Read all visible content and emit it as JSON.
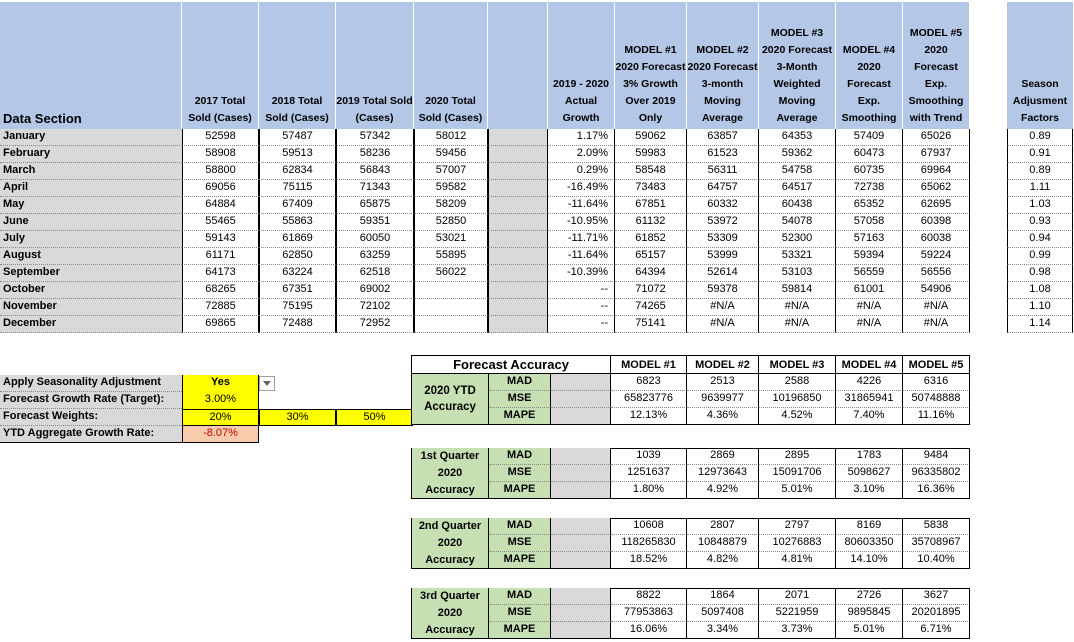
{
  "header": {
    "data_section": "Data Section",
    "cols": [
      "2017 Total Sold (Cases)",
      "2018 Total Sold (Cases)",
      "2019 Total Sold (Cases)",
      "2020 Total Sold (Cases)",
      "",
      "2019 - 2020 Actual Growth",
      "MODEL #1 2020 Forecast 3% Growth Over 2019 Only",
      "MODEL #2 2020 Forecast 3-month Moving Average",
      "MODEL #3 2020 Forecast 3-Month Weighted Moving Average",
      "MODEL #4 2020 Forecast Exp. Smoothing",
      "MODEL #5 2020 Forecast Exp. Smoothing with Trend",
      "Season Adjusment Factors"
    ]
  },
  "months": [
    {
      "name": "January",
      "y2017": "52598",
      "y2018": "57487",
      "y2019": "57342",
      "y2020": "58012",
      "growth": "1.17%",
      "m1": "59062",
      "m2": "63857",
      "m3": "64353",
      "m4": "57409",
      "m5": "65026",
      "season": "0.89"
    },
    {
      "name": "February",
      "y2017": "58908",
      "y2018": "59513",
      "y2019": "58236",
      "y2020": "59456",
      "growth": "2.09%",
      "m1": "59983",
      "m2": "61523",
      "m3": "59362",
      "m4": "60473",
      "m5": "67937",
      "season": "0.91"
    },
    {
      "name": "March",
      "y2017": "58800",
      "y2018": "62834",
      "y2019": "56843",
      "y2020": "57007",
      "growth": "0.29%",
      "m1": "58548",
      "m2": "56311",
      "m3": "54758",
      "m4": "60735",
      "m5": "69964",
      "season": "0.89"
    },
    {
      "name": "April",
      "y2017": "69056",
      "y2018": "75115",
      "y2019": "71343",
      "y2020": "59582",
      "growth": "-16.49%",
      "m1": "73483",
      "m2": "64757",
      "m3": "64517",
      "m4": "72738",
      "m5": "65062",
      "season": "1.11"
    },
    {
      "name": "May",
      "y2017": "64884",
      "y2018": "67409",
      "y2019": "65875",
      "y2020": "58209",
      "growth": "-11.64%",
      "m1": "67851",
      "m2": "60332",
      "m3": "60438",
      "m4": "65352",
      "m5": "62695",
      "season": "1.03"
    },
    {
      "name": "June",
      "y2017": "55465",
      "y2018": "55863",
      "y2019": "59351",
      "y2020": "52850",
      "growth": "-10.95%",
      "m1": "61132",
      "m2": "53972",
      "m3": "54078",
      "m4": "57058",
      "m5": "60398",
      "season": "0.93"
    },
    {
      "name": "July",
      "y2017": "59143",
      "y2018": "61869",
      "y2019": "60050",
      "y2020": "53021",
      "growth": "-11.71%",
      "m1": "61852",
      "m2": "53309",
      "m3": "52300",
      "m4": "57163",
      "m5": "60038",
      "season": "0.94"
    },
    {
      "name": "August",
      "y2017": "61171",
      "y2018": "62850",
      "y2019": "63259",
      "y2020": "55895",
      "growth": "-11.64%",
      "m1": "65157",
      "m2": "53999",
      "m3": "53321",
      "m4": "59394",
      "m5": "59224",
      "season": "0.99"
    },
    {
      "name": "September",
      "y2017": "64173",
      "y2018": "63224",
      "y2019": "62518",
      "y2020": "56022",
      "growth": "-10.39%",
      "m1": "64394",
      "m2": "52614",
      "m3": "53103",
      "m4": "56559",
      "m5": "56556",
      "season": "0.98"
    },
    {
      "name": "October",
      "y2017": "68265",
      "y2018": "67351",
      "y2019": "69002",
      "y2020": "",
      "growth": "--",
      "m1": "71072",
      "m2": "59378",
      "m3": "59814",
      "m4": "61001",
      "m5": "54906",
      "season": "1.08"
    },
    {
      "name": "November",
      "y2017": "72885",
      "y2018": "75195",
      "y2019": "72102",
      "y2020": "",
      "growth": "--",
      "m1": "74265",
      "m2": "#N/A",
      "m3": "#N/A",
      "m4": "#N/A",
      "m5": "#N/A",
      "season": "1.10"
    },
    {
      "name": "December",
      "y2017": "69865",
      "y2018": "72488",
      "y2019": "72952",
      "y2020": "",
      "growth": "--",
      "m1": "75141",
      "m2": "#N/A",
      "m3": "#N/A",
      "m4": "#N/A",
      "m5": "#N/A",
      "season": "1.14"
    }
  ],
  "settings": {
    "seasonality_label": "Apply Seasonality Adjustment",
    "seasonality_value": "Yes",
    "growth_label": "Forecast Growth Rate (Target):",
    "growth_value": "3.00%",
    "weights_label": "Forecast Weights:",
    "weights": [
      "20%",
      "30%",
      "50%"
    ],
    "ytd_label": "YTD Aggregate Growth Rate:",
    "ytd_value": "-8.07%"
  },
  "accuracy": {
    "title": "Forecast Accuracy",
    "models": [
      "MODEL #1",
      "MODEL #2",
      "MODEL #3",
      "MODEL #4",
      "MODEL #5"
    ],
    "blocks": [
      {
        "label": "2020 YTD Accuracy",
        "rows": [
          {
            "metric": "MAD",
            "values": [
              "6823",
              "2513",
              "2588",
              "4226",
              "6316"
            ]
          },
          {
            "metric": "MSE",
            "values": [
              "65823776",
              "9639977",
              "10196850",
              "31865941",
              "50748888"
            ]
          },
          {
            "metric": "MAPE",
            "values": [
              "12.13%",
              "4.36%",
              "4.52%",
              "7.40%",
              "11.16%"
            ]
          }
        ]
      },
      {
        "label": "1st Quarter 2020 Accuracy",
        "rows": [
          {
            "metric": "MAD",
            "values": [
              "1039",
              "2869",
              "2895",
              "1783",
              "9484"
            ]
          },
          {
            "metric": "MSE",
            "values": [
              "1251637",
              "12973643",
              "15091706",
              "5098627",
              "96335802"
            ]
          },
          {
            "metric": "MAPE",
            "values": [
              "1.80%",
              "4.92%",
              "5.01%",
              "3.10%",
              "16.36%"
            ]
          }
        ]
      },
      {
        "label": "2nd Quarter 2020 Accuracy",
        "rows": [
          {
            "metric": "MAD",
            "values": [
              "10608",
              "2807",
              "2797",
              "8169",
              "5838"
            ]
          },
          {
            "metric": "MSE",
            "values": [
              "118265830",
              "10848879",
              "10276883",
              "80603350",
              "35708967"
            ]
          },
          {
            "metric": "MAPE",
            "values": [
              "18.52%",
              "4.82%",
              "4.81%",
              "14.10%",
              "10.40%"
            ]
          }
        ]
      },
      {
        "label": "3rd Quarter 2020 Accuracy",
        "rows": [
          {
            "metric": "MAD",
            "values": [
              "8822",
              "1864",
              "2071",
              "2726",
              "3627"
            ]
          },
          {
            "metric": "MSE",
            "values": [
              "77953863",
              "5097408",
              "5221959",
              "9895845",
              "20201895"
            ]
          },
          {
            "metric": "MAPE",
            "values": [
              "16.06%",
              "3.34%",
              "3.73%",
              "5.01%",
              "6.71%"
            ]
          }
        ]
      }
    ]
  }
}
